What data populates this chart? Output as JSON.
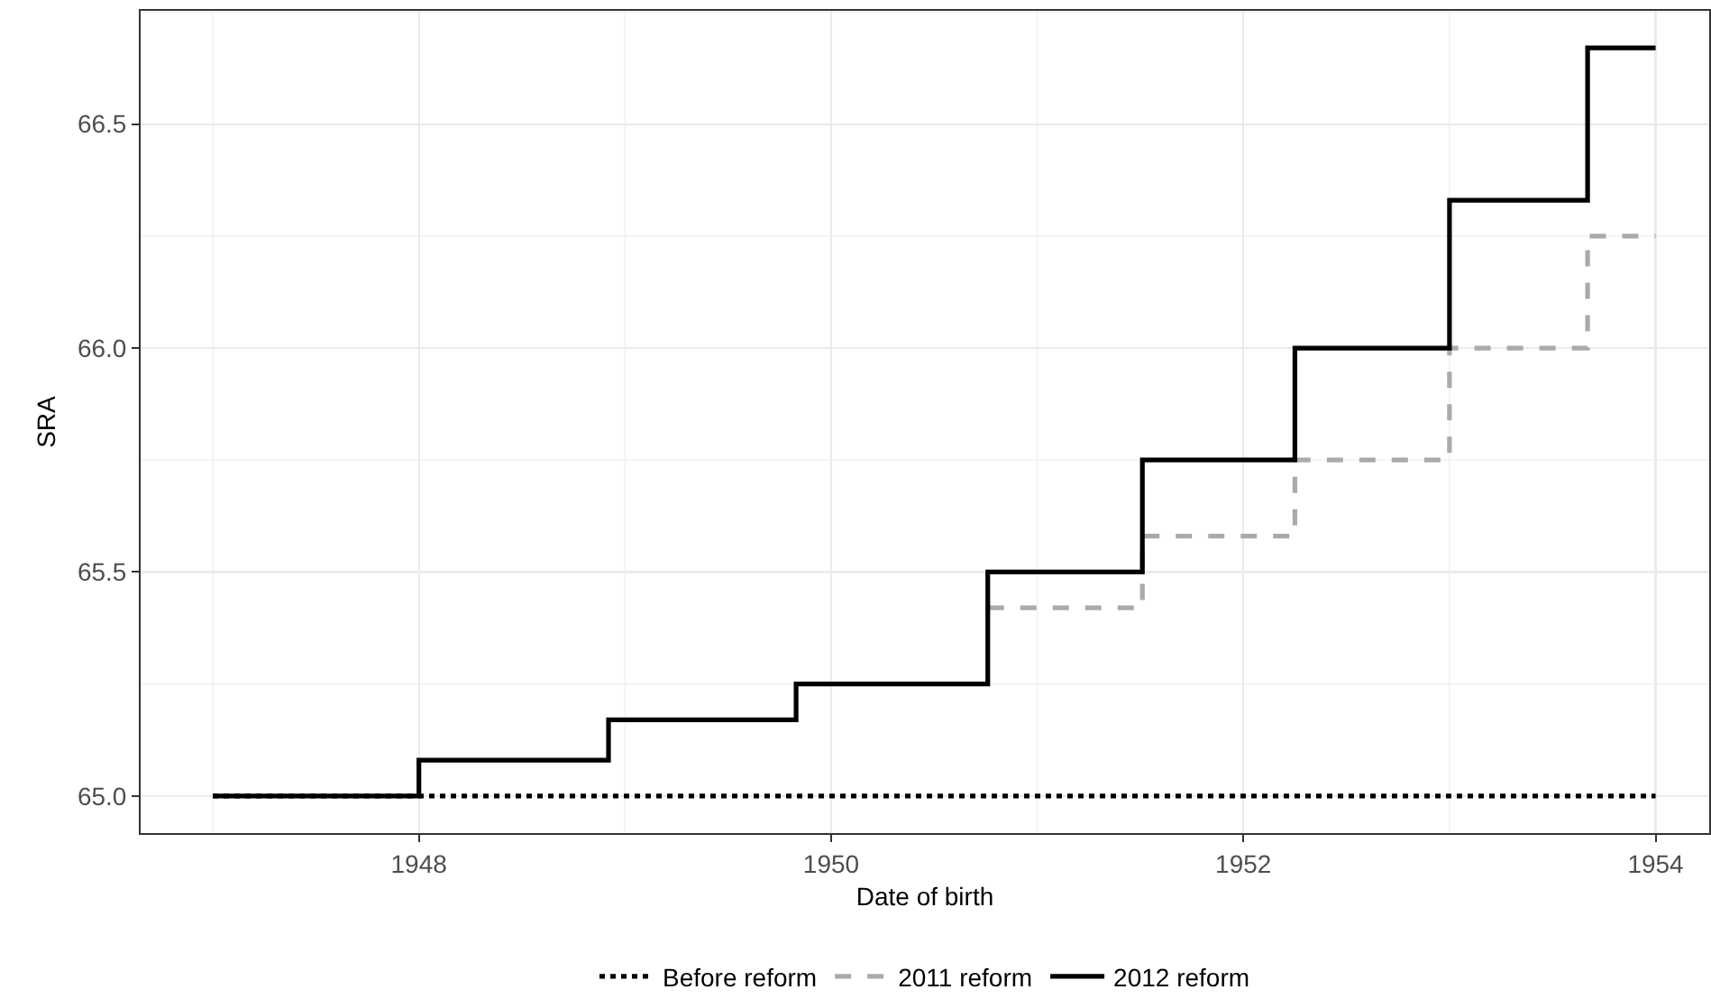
{
  "chart_data": {
    "type": "step",
    "xlabel": "Date of birth",
    "ylabel": "SRA",
    "xlim": [
      1946.65,
      1954.26
    ],
    "ylim": [
      64.917,
      66.753
    ],
    "xticks": [
      1948,
      1950,
      1952,
      1954
    ],
    "yticks": [
      {
        "value": 65,
        "label": "65.0"
      },
      {
        "value": 65.5,
        "label": "65.5"
      },
      {
        "value": 66,
        "label": "66.0"
      },
      {
        "value": 66.5,
        "label": "66.5"
      }
    ],
    "grid": true,
    "legend": "bottom",
    "series": [
      {
        "name": "Before reform",
        "color": "#000000",
        "line_style": "dotted",
        "x": [
          1947,
          1954
        ],
        "values": [
          65,
          65
        ]
      },
      {
        "name": "2011 reform",
        "color": "#aaaaaa",
        "line_style": "dashed",
        "x": [
          1950.76,
          1951.51,
          1952.25,
          1953,
          1953.67,
          1954
        ],
        "values": [
          65.42,
          65.58,
          65.75,
          66,
          66.25,
          66.25
        ]
      },
      {
        "name": "2012 reform",
        "color": "#000000",
        "line_style": "solid",
        "x": [
          1947,
          1948,
          1948.92,
          1949.83,
          1950.76,
          1951.51,
          1952.25,
          1953,
          1953.67,
          1954
        ],
        "values": [
          65,
          65.08,
          65.17,
          65.25,
          65.5,
          65.75,
          66,
          66.33,
          66.67,
          66.67
        ]
      }
    ]
  }
}
